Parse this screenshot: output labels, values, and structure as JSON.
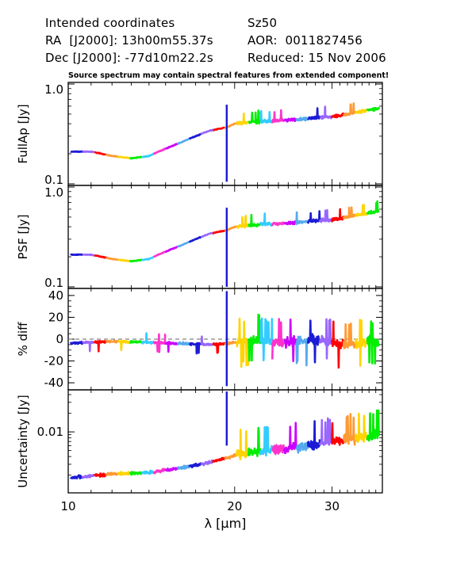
{
  "header": {
    "title_left": "Intended coordinates",
    "ra_line": "RA  [J2000]: 13h00m55.37s",
    "dec_line": "Dec [J2000]: -77d10m22.2s",
    "target": "Sz50",
    "aor": "AOR:  0011827456",
    "reduced": "Reduced: 15 Nov 2006"
  },
  "note": "Source spectrum may contain spectral features from extended component!",
  "colors": [
    "#1b1bd6",
    "#9966ff",
    "#ff0000",
    "#ff9933",
    "#ffd400",
    "#00ee00",
    "#33ccff",
    "#ff33cc",
    "#cc00ff",
    "#55aaee"
  ],
  "chart_data": [
    {
      "type": "line",
      "ylabel": "FullAp [Jy]",
      "yscale": "log",
      "ylim": [
        0.1,
        1.0
      ],
      "yticks": [
        "1.0",
        "0.1"
      ],
      "xlim": [
        10,
        37
      ],
      "x": [
        10,
        11,
        12,
        13,
        14,
        16,
        18,
        19.4,
        20,
        22,
        24,
        26,
        28,
        30,
        32,
        35,
        37
      ],
      "y": [
        0.21,
        0.21,
        0.19,
        0.18,
        0.19,
        0.26,
        0.34,
        0.37,
        0.4,
        0.42,
        0.43,
        0.44,
        0.46,
        0.47,
        0.5,
        0.55,
        0.58
      ]
    },
    {
      "type": "line",
      "ylabel": "PSF [Jy]",
      "yscale": "log",
      "ylim": [
        0.1,
        1.0
      ],
      "yticks": [
        "1.0",
        "0.1"
      ],
      "xlim": [
        10,
        37
      ],
      "x": [
        10,
        11,
        12,
        13,
        14,
        16,
        18,
        19.4,
        20,
        22,
        24,
        26,
        28,
        30,
        32,
        35,
        37
      ],
      "y": [
        0.21,
        0.21,
        0.19,
        0.18,
        0.19,
        0.26,
        0.34,
        0.37,
        0.4,
        0.42,
        0.43,
        0.44,
        0.46,
        0.47,
        0.5,
        0.55,
        0.58
      ]
    },
    {
      "type": "line",
      "ylabel": "% diff",
      "ylim": [
        -45,
        45
      ],
      "yticks": [
        "40",
        "20",
        "0",
        "-20",
        "-40"
      ],
      "reference_line": 0,
      "xlim": [
        10,
        37
      ],
      "x": [
        10,
        12,
        14,
        16,
        18,
        19.4,
        20,
        22,
        24,
        26,
        28,
        30,
        32,
        35,
        37
      ],
      "y": [
        -4,
        -2,
        -3,
        -4,
        -5,
        -4,
        -3,
        -1,
        -3,
        -2,
        0,
        -3,
        -5,
        -2,
        -4
      ]
    },
    {
      "type": "line",
      "ylabel": "Uncertainty [Jy]",
      "yscale": "log",
      "yticks": [
        "0.01"
      ],
      "xlabel": "λ [μm]",
      "xticks": [
        "10",
        "20",
        "30"
      ],
      "xlim": [
        10,
        37
      ],
      "x": [
        10,
        12,
        14,
        16,
        18,
        19.4,
        20,
        22,
        24,
        26,
        28,
        30,
        32,
        35,
        37
      ],
      "y": [
        0.0018,
        0.0021,
        0.0022,
        0.0026,
        0.0032,
        0.0038,
        0.0042,
        0.0048,
        0.0052,
        0.0056,
        0.0062,
        0.0068,
        0.0075,
        0.0085,
        0.0095
      ]
    }
  ]
}
